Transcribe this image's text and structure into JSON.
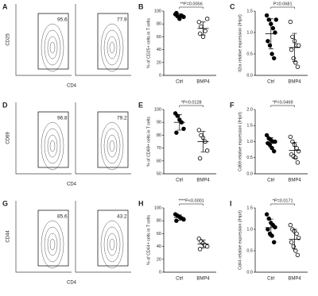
{
  "chart_data": [
    {
      "type": "flow",
      "panel_label": "A",
      "xlabel": "CD4",
      "ylabel": "CD25",
      "gates": [
        95.6,
        77.9
      ]
    },
    {
      "type": "dot",
      "panel_label": "B",
      "ylabel": "% of CD25+ cells in T cells",
      "annotation": "**P=0.0056",
      "ylim": [
        0,
        100
      ],
      "yticks": [
        0,
        20,
        40,
        60,
        80,
        100
      ],
      "series": [
        {
          "name": "Ctrl",
          "color": "#000000",
          "filled": true,
          "values": [
            95,
            92,
            88,
            93,
            91,
            97
          ],
          "mean": 93,
          "error": 3
        },
        {
          "name": "BMP4",
          "color": "#000000",
          "filled": false,
          "values": [
            83,
            76,
            60,
            69,
            88,
            65
          ],
          "mean": 73,
          "error": 10
        }
      ]
    },
    {
      "type": "dot",
      "panel_label": "C",
      "ylabel": "Il2ra relative expression (/Hprt)",
      "annotation": "P=0.0681",
      "ylim": [
        0,
        1.5
      ],
      "yticks": [
        {
          "value": 0,
          "label": "0.0"
        },
        {
          "value": 0.5,
          "label": "0.5"
        },
        {
          "value": 1,
          "label": "1.0"
        },
        {
          "value": 1.5,
          "label": "1.5"
        }
      ],
      "series": [
        {
          "name": "Ctrl",
          "color": "#000000",
          "filled": true,
          "values": [
            1.4,
            1.3,
            1.2,
            1.1,
            1.0,
            0.8,
            0.7,
            0.5,
            0.4,
            1.3
          ],
          "mean": 0.97,
          "error": 0.35
        },
        {
          "name": "BMP4",
          "color": "#000000",
          "filled": false,
          "values": [
            1.25,
            0.9,
            0.8,
            0.7,
            0.7,
            0.6,
            0.4,
            0.3,
            0.2
          ],
          "mean": 0.65,
          "error": 0.33
        }
      ]
    },
    {
      "type": "flow",
      "panel_label": "D",
      "xlabel": "CD4",
      "ylabel": "CD69",
      "gates": [
        96.8,
        79.2
      ]
    },
    {
      "type": "dot",
      "panel_label": "E",
      "ylabel": "% of CD69+ cells in T cells",
      "annotation": "*P=0.0128",
      "ylim": [
        50,
        100
      ],
      "yticks": [
        50,
        60,
        70,
        80,
        90,
        100
      ],
      "series": [
        {
          "name": "Ctrl",
          "color": "#000000",
          "filled": true,
          "values": [
            97,
            95,
            92,
            90,
            85,
            82
          ],
          "mean": 90,
          "error": 6
        },
        {
          "name": "BMP4",
          "color": "#000000",
          "filled": false,
          "values": [
            84,
            80,
            78,
            75,
            68,
            62
          ],
          "mean": 75,
          "error": 8
        }
      ]
    },
    {
      "type": "dot",
      "panel_label": "F",
      "ylabel": "Cd69 relative expression (/Hprt)",
      "annotation": "*P=0.0469",
      "ylim": [
        0,
        2
      ],
      "yticks": [
        {
          "value": 0,
          "label": "0.0"
        },
        {
          "value": 0.5,
          "label": "0.5"
        },
        {
          "value": 1,
          "label": "1.0"
        },
        {
          "value": 1.5,
          "label": "1.5"
        },
        {
          "value": 2,
          "label": "2.0"
        }
      ],
      "series": [
        {
          "name": "Ctrl",
          "color": "#000000",
          "filled": true,
          "values": [
            1.2,
            1.1,
            1.05,
            1.0,
            1.0,
            0.95,
            0.9,
            0.8,
            0.7
          ],
          "mean": 0.97,
          "error": 0.15
        },
        {
          "name": "BMP4",
          "color": "#000000",
          "filled": false,
          "values": [
            1.15,
            1.0,
            0.9,
            0.8,
            0.7,
            0.6,
            0.55,
            0.5,
            0.35
          ],
          "mean": 0.73,
          "error": 0.25
        }
      ]
    },
    {
      "type": "flow",
      "panel_label": "G",
      "xlabel": "CD4",
      "ylabel": "CD44",
      "gates": [
        85.6,
        43.2
      ]
    },
    {
      "type": "dot",
      "panel_label": "H",
      "ylabel": "% of CD44+ cells in T cells",
      "annotation": "****P<0.0001",
      "ylim": [
        0,
        100
      ],
      "yticks": [
        0,
        20,
        40,
        60,
        80,
        100
      ],
      "series": [
        {
          "name": "Ctrl",
          "color": "#000000",
          "filled": true,
          "values": [
            90,
            88,
            86,
            84,
            82,
            80
          ],
          "mean": 85,
          "error": 4
        },
        {
          "name": "BMP4",
          "color": "#000000",
          "filled": false,
          "values": [
            52,
            48,
            45,
            42,
            40,
            36
          ],
          "mean": 44,
          "error": 6
        }
      ]
    },
    {
      "type": "dot",
      "panel_label": "I",
      "ylabel": "Cd44 relative expression (/Hprt)",
      "annotation": "*P=0.0171",
      "ylim": [
        0,
        1.5
      ],
      "yticks": [
        {
          "value": 0,
          "label": "0.0"
        },
        {
          "value": 0.5,
          "label": "0.5"
        },
        {
          "value": 1,
          "label": "1.0"
        },
        {
          "value": 1.5,
          "label": "1.5"
        }
      ],
      "series": [
        {
          "name": "Ctrl",
          "color": "#000000",
          "filled": true,
          "values": [
            1.35,
            1.25,
            1.15,
            1.1,
            1.05,
            1.0,
            0.9,
            0.85,
            0.7
          ],
          "mean": 1.04,
          "error": 0.2
        },
        {
          "name": "BMP4",
          "color": "#000000",
          "filled": false,
          "values": [
            1.1,
            1.0,
            0.95,
            0.9,
            0.8,
            0.7,
            0.6,
            0.5,
            0.4
          ],
          "mean": 0.77,
          "error": 0.23
        }
      ]
    }
  ]
}
